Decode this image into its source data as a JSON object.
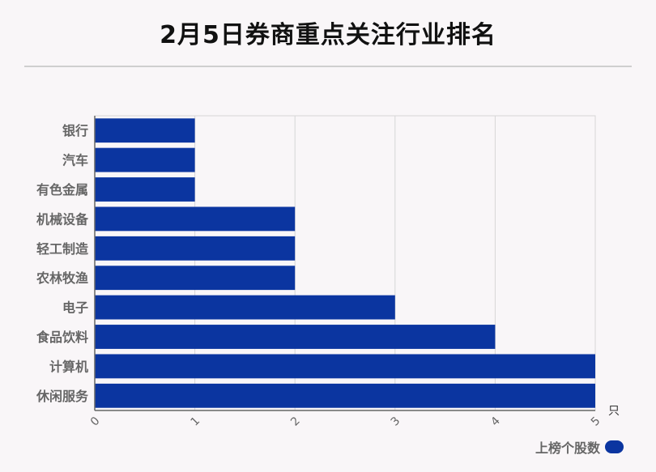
{
  "title": "2月5日券商重点关注行业排名",
  "chart_data": {
    "type": "bar",
    "orientation": "horizontal",
    "categories": [
      "银行",
      "汽车",
      "有色金属",
      "机械设备",
      "轻工制造",
      "农林牧渔",
      "电子",
      "食品饮料",
      "计算机",
      "休闲服务"
    ],
    "series": [
      {
        "name": "上榜个股数",
        "values": [
          1,
          1,
          1,
          2,
          2,
          2,
          3,
          4,
          5,
          5
        ],
        "color": "#0b35a0"
      }
    ],
    "xlim": [
      0,
      5
    ],
    "xticks": [
      0,
      1,
      2,
      3,
      4,
      5
    ],
    "xunit": "只",
    "grid": true,
    "legend_position": "bottom-right"
  }
}
